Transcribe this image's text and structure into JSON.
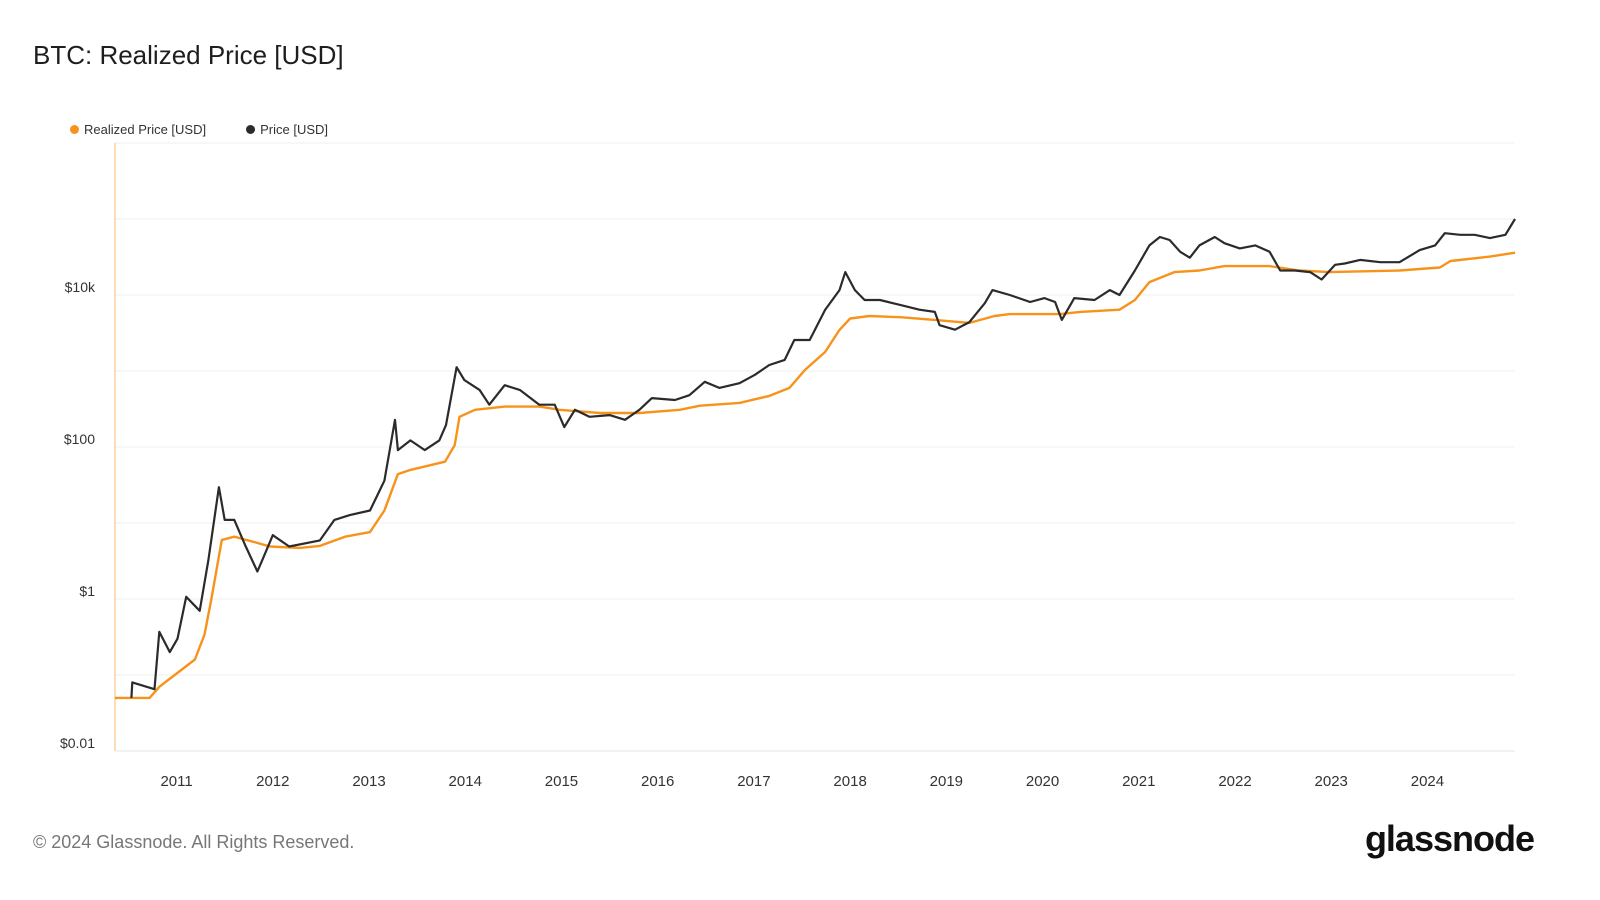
{
  "title": "BTC: Realized Price [USD]",
  "footer": "© 2024 Glassnode. All Rights Reserved.",
  "logo": "glassnode",
  "chart_data": {
    "type": "line",
    "title": "BTC: Realized Price [USD]",
    "xlabel": "",
    "ylabel": "",
    "yscale": "log",
    "ylim": [
      0.01,
      1000000
    ],
    "xlim": [
      2010.36,
      2024.91
    ],
    "grid": true,
    "legend_position": "top-left",
    "y_ticks": [
      {
        "value": 0.01,
        "label": "$0.01"
      },
      {
        "value": 1,
        "label": "$1"
      },
      {
        "value": 100,
        "label": "$100"
      },
      {
        "value": 10000,
        "label": "$10k"
      }
    ],
    "x_ticks": [
      "2011",
      "2012",
      "2013",
      "2014",
      "2015",
      "2016",
      "2017",
      "2018",
      "2019",
      "2020",
      "2021",
      "2022",
      "2023",
      "2024"
    ],
    "series": [
      {
        "name": "Realized Price [USD]",
        "color": "#f7931a",
        "points": [
          [
            2010.36,
            0.05
          ],
          [
            2010.72,
            0.05
          ],
          [
            2010.82,
            0.07
          ],
          [
            2010.98,
            0.1
          ],
          [
            2011.19,
            0.16
          ],
          [
            2011.29,
            0.34
          ],
          [
            2011.36,
            0.97
          ],
          [
            2011.47,
            6
          ],
          [
            2011.6,
            6.6
          ],
          [
            2011.81,
            5.6
          ],
          [
            2011.97,
            4.9
          ],
          [
            2012.28,
            4.7
          ],
          [
            2012.49,
            5
          ],
          [
            2012.75,
            6.6
          ],
          [
            2013.01,
            7.6
          ],
          [
            2013.16,
            14.6
          ],
          [
            2013.3,
            44
          ],
          [
            2013.43,
            50
          ],
          [
            2013.79,
            64
          ],
          [
            2013.89,
            106
          ],
          [
            2013.94,
            250
          ],
          [
            2014.1,
            309
          ],
          [
            2014.41,
            340
          ],
          [
            2014.77,
            340
          ],
          [
            2014.98,
            309
          ],
          [
            2015.4,
            280
          ],
          [
            2015.81,
            280
          ],
          [
            2016.23,
            309
          ],
          [
            2016.44,
            350
          ],
          [
            2016.85,
            380
          ],
          [
            2017.16,
            470
          ],
          [
            2017.37,
            600
          ],
          [
            2017.53,
            1030
          ],
          [
            2017.74,
            1780
          ],
          [
            2017.89,
            3470
          ],
          [
            2018.0,
            4900
          ],
          [
            2018.2,
            5300
          ],
          [
            2018.52,
            5100
          ],
          [
            2018.88,
            4700
          ],
          [
            2019.24,
            4300
          ],
          [
            2019.5,
            5300
          ],
          [
            2019.66,
            5600
          ],
          [
            2020.18,
            5600
          ],
          [
            2020.39,
            6000
          ],
          [
            2020.8,
            6400
          ],
          [
            2020.96,
            8600
          ],
          [
            2021.11,
            14800
          ],
          [
            2021.37,
            20000
          ],
          [
            2021.63,
            21000
          ],
          [
            2021.89,
            24000
          ],
          [
            2022.36,
            24000
          ],
          [
            2022.67,
            21000
          ],
          [
            2022.98,
            20000
          ],
          [
            2023.71,
            21000
          ],
          [
            2024.13,
            23000
          ],
          [
            2024.24,
            28000
          ],
          [
            2024.65,
            32000
          ],
          [
            2024.91,
            36000
          ]
        ]
      },
      {
        "name": "Price [USD]",
        "color": "#2b2b2b",
        "points": [
          [
            2010.53,
            0.05
          ],
          [
            2010.54,
            0.08
          ],
          [
            2010.77,
            0.065
          ],
          [
            2010.82,
            0.37
          ],
          [
            2010.93,
            0.2
          ],
          [
            2011.01,
            0.3
          ],
          [
            2011.1,
            1.07
          ],
          [
            2011.24,
            0.7
          ],
          [
            2011.33,
            3.2
          ],
          [
            2011.44,
            29.6
          ],
          [
            2011.5,
            11
          ],
          [
            2011.6,
            11
          ],
          [
            2011.71,
            5.2
          ],
          [
            2011.84,
            2.3
          ],
          [
            2011.91,
            3.7
          ],
          [
            2012.0,
            6.9
          ],
          [
            2012.17,
            4.9
          ],
          [
            2012.49,
            5.9
          ],
          [
            2012.64,
            11
          ],
          [
            2012.8,
            12.7
          ],
          [
            2013.01,
            14.6
          ],
          [
            2013.16,
            36
          ],
          [
            2013.27,
            228
          ],
          [
            2013.3,
            91
          ],
          [
            2013.43,
            122
          ],
          [
            2013.58,
            91
          ],
          [
            2013.73,
            122
          ],
          [
            2013.8,
            194
          ],
          [
            2013.91,
            1122
          ],
          [
            2013.99,
            761
          ],
          [
            2014.15,
            560
          ],
          [
            2014.25,
            360
          ],
          [
            2014.41,
            650
          ],
          [
            2014.57,
            560
          ],
          [
            2014.77,
            360
          ],
          [
            2014.93,
            360
          ],
          [
            2015.03,
            183
          ],
          [
            2015.14,
            309
          ],
          [
            2015.29,
            250
          ],
          [
            2015.5,
            263
          ],
          [
            2015.66,
            228
          ],
          [
            2015.81,
            309
          ],
          [
            2015.94,
            440
          ],
          [
            2016.18,
            415
          ],
          [
            2016.33,
            480
          ],
          [
            2016.49,
            720
          ],
          [
            2016.64,
            600
          ],
          [
            2016.85,
            690
          ],
          [
            2017.01,
            890
          ],
          [
            2017.16,
            1200
          ],
          [
            2017.32,
            1400
          ],
          [
            2017.42,
            2560
          ],
          [
            2017.58,
            2560
          ],
          [
            2017.74,
            6360
          ],
          [
            2017.89,
            11600
          ],
          [
            2017.95,
            20000
          ],
          [
            2018.05,
            11600
          ],
          [
            2018.15,
            8600
          ],
          [
            2018.31,
            8600
          ],
          [
            2018.52,
            7400
          ],
          [
            2018.72,
            6400
          ],
          [
            2018.88,
            6000
          ],
          [
            2018.93,
            4000
          ],
          [
            2019.09,
            3500
          ],
          [
            2019.24,
            4400
          ],
          [
            2019.4,
            7800
          ],
          [
            2019.48,
            11600
          ],
          [
            2019.66,
            10000
          ],
          [
            2019.87,
            8100
          ],
          [
            2020.02,
            9100
          ],
          [
            2020.13,
            8100
          ],
          [
            2020.2,
            4700
          ],
          [
            2020.33,
            9100
          ],
          [
            2020.54,
            8600
          ],
          [
            2020.7,
            11600
          ],
          [
            2020.8,
            10000
          ],
          [
            2020.96,
            21000
          ],
          [
            2021.11,
            45000
          ],
          [
            2021.22,
            58000
          ],
          [
            2021.32,
            53000
          ],
          [
            2021.43,
            37000
          ],
          [
            2021.53,
            31000
          ],
          [
            2021.63,
            45000
          ],
          [
            2021.79,
            58000
          ],
          [
            2021.89,
            48000
          ],
          [
            2022.05,
            41000
          ],
          [
            2022.21,
            45000
          ],
          [
            2022.36,
            37000
          ],
          [
            2022.47,
            21000
          ],
          [
            2022.62,
            21000
          ],
          [
            2022.78,
            20000
          ],
          [
            2022.9,
            16000
          ],
          [
            2023.04,
            25000
          ],
          [
            2023.14,
            26000
          ],
          [
            2023.3,
            29000
          ],
          [
            2023.51,
            27000
          ],
          [
            2023.71,
            27000
          ],
          [
            2023.92,
            39000
          ],
          [
            2024.08,
            45000
          ],
          [
            2024.18,
            65000
          ],
          [
            2024.34,
            62000
          ],
          [
            2024.49,
            62000
          ],
          [
            2024.65,
            56000
          ],
          [
            2024.81,
            62000
          ],
          [
            2024.91,
            100000
          ]
        ]
      }
    ]
  }
}
